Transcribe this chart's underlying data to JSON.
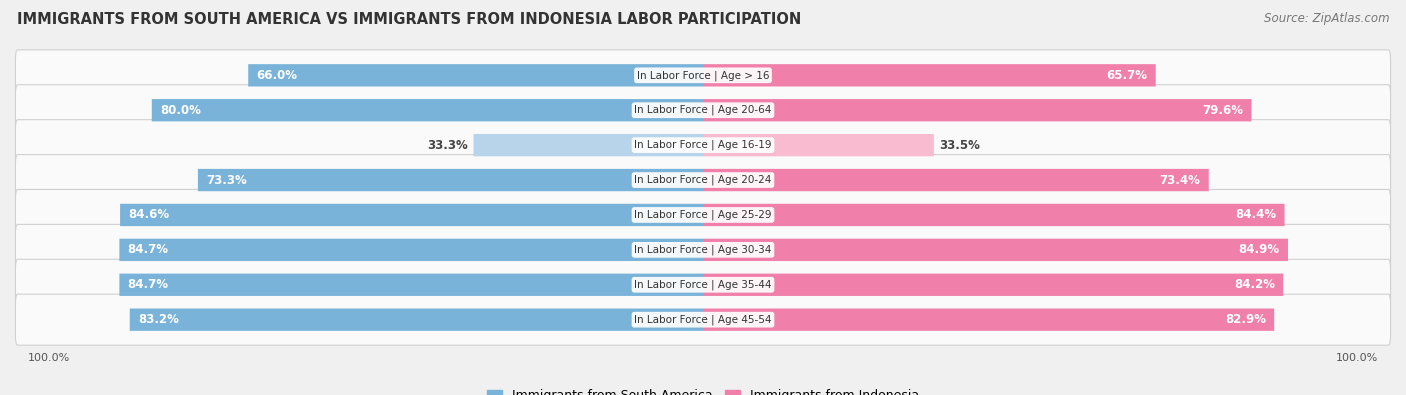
{
  "title": "IMMIGRANTS FROM SOUTH AMERICA VS IMMIGRANTS FROM INDONESIA LABOR PARTICIPATION",
  "source": "Source: ZipAtlas.com",
  "categories": [
    "In Labor Force | Age > 16",
    "In Labor Force | Age 20-64",
    "In Labor Force | Age 16-19",
    "In Labor Force | Age 20-24",
    "In Labor Force | Age 25-29",
    "In Labor Force | Age 30-34",
    "In Labor Force | Age 35-44",
    "In Labor Force | Age 45-54"
  ],
  "south_america": [
    66.0,
    80.0,
    33.3,
    73.3,
    84.6,
    84.7,
    84.7,
    83.2
  ],
  "indonesia": [
    65.7,
    79.6,
    33.5,
    73.4,
    84.4,
    84.9,
    84.2,
    82.9
  ],
  "south_america_color": "#7ab3d9",
  "indonesia_color": "#f07faa",
  "south_america_light": "#b8d4ea",
  "indonesia_light": "#f8bbd0",
  "label_dark_color": "#444444",
  "bg_color": "#f0f0f0",
  "row_bg": "#fafafa",
  "row_border": "#d0d0d0",
  "max_val": 100.0,
  "legend_sa": "Immigrants from South America",
  "legend_id": "Immigrants from Indonesia",
  "bottom_label": "100.0%"
}
